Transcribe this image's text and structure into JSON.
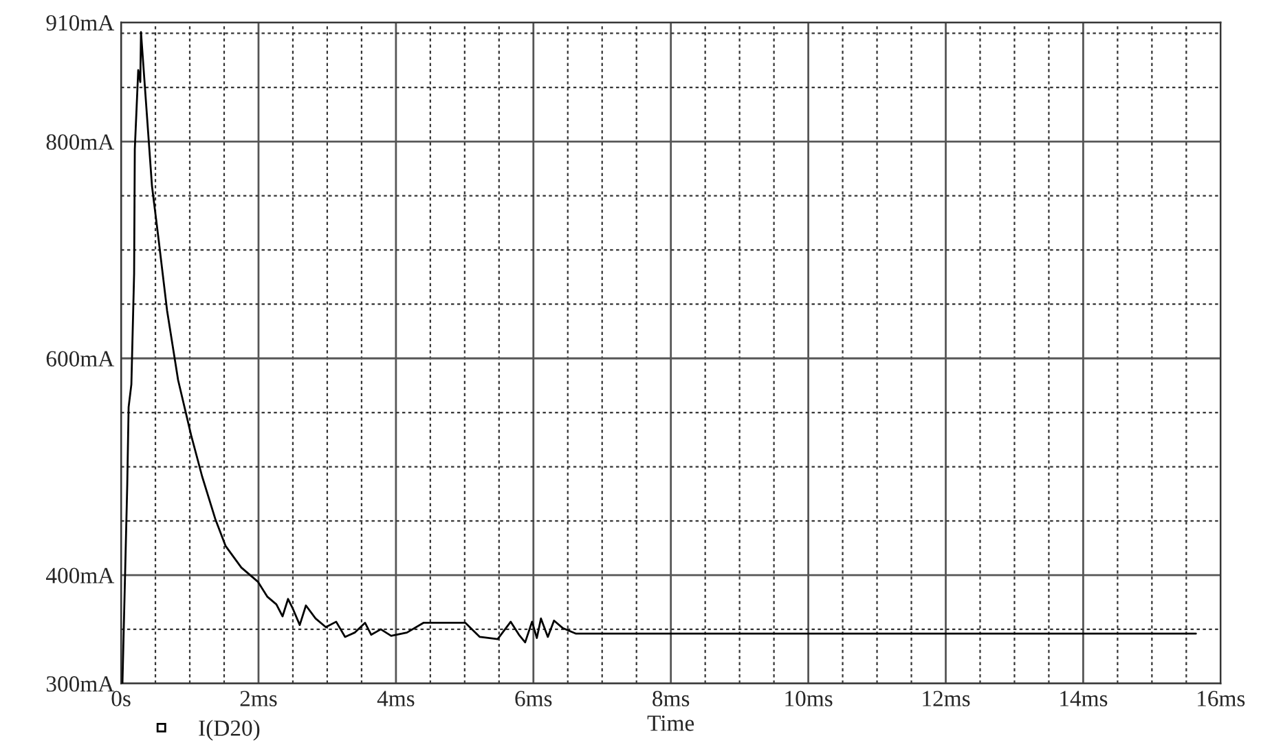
{
  "chart_data": {
    "type": "line",
    "xlabel": "Time",
    "x": [
      0.02,
      0.09,
      0.11,
      0.15,
      0.19,
      0.2,
      0.25,
      0.28,
      0.29,
      0.45,
      0.54,
      0.67,
      0.83,
      1.02,
      1.18,
      1.37,
      1.52,
      1.75,
      1.99,
      2.13,
      2.26,
      2.35,
      2.43,
      2.5,
      2.6,
      2.69,
      2.83,
      2.98,
      3.13,
      3.26,
      3.4,
      3.55,
      3.64,
      3.78,
      3.93,
      4.16,
      4.4,
      5.01,
      5.22,
      5.48,
      5.67,
      5.79,
      5.88,
      5.98,
      6.05,
      6.11,
      6.21,
      6.3,
      6.43,
      6.62,
      15.64
    ],
    "series": [
      {
        "name": "I(D20)",
        "color": "#000000",
        "values": [
          300,
          483,
          555,
          576,
          678,
          793,
          866,
          855,
          901,
          759,
          713,
          644,
          580,
          529,
          491,
          452,
          427,
          407,
          394,
          380,
          373,
          362,
          378,
          369,
          354,
          372,
          360,
          352,
          357,
          343,
          347,
          356,
          345,
          350,
          344,
          347,
          356,
          356,
          343,
          341,
          357,
          345,
          338,
          357,
          342,
          360,
          343,
          358,
          351,
          346,
          346
        ]
      }
    ],
    "xlim": [
      0,
      16
    ],
    "xticks": [
      {
        "value": 0,
        "label": "0s"
      },
      {
        "value": 0.5,
        "label": null
      },
      {
        "value": 1,
        "label": null
      },
      {
        "value": 1.5,
        "label": null
      },
      {
        "value": 2,
        "label": "2ms"
      },
      {
        "value": 2.5,
        "label": null
      },
      {
        "value": 3,
        "label": null
      },
      {
        "value": 3.5,
        "label": null
      },
      {
        "value": 4,
        "label": "4ms"
      },
      {
        "value": 4.5,
        "label": null
      },
      {
        "value": 5,
        "label": null
      },
      {
        "value": 5.5,
        "label": null
      },
      {
        "value": 6,
        "label": "6ms"
      },
      {
        "value": 6.5,
        "label": null
      },
      {
        "value": 7,
        "label": null
      },
      {
        "value": 7.5,
        "label": null
      },
      {
        "value": 8,
        "label": "8ms"
      },
      {
        "value": 8.5,
        "label": null
      },
      {
        "value": 9,
        "label": null
      },
      {
        "value": 9.5,
        "label": null
      },
      {
        "value": 10,
        "label": "10ms"
      },
      {
        "value": 10.5,
        "label": null
      },
      {
        "value": 11,
        "label": null
      },
      {
        "value": 11.5,
        "label": null
      },
      {
        "value": 12,
        "label": "12ms"
      },
      {
        "value": 12.5,
        "label": null
      },
      {
        "value": 13,
        "label": null
      },
      {
        "value": 13.5,
        "label": null
      },
      {
        "value": 14,
        "label": "14ms"
      },
      {
        "value": 14.5,
        "label": null
      },
      {
        "value": 15,
        "label": null
      },
      {
        "value": 15.5,
        "label": null
      },
      {
        "value": 16,
        "label": "16ms"
      }
    ],
    "ylim": [
      300,
      910
    ],
    "yticks": [
      {
        "value": 300,
        "label": "300mA"
      },
      {
        "value": 350,
        "label": null
      },
      {
        "value": 400,
        "label": "400mA"
      },
      {
        "value": 450,
        "label": null
      },
      {
        "value": 500,
        "label": null
      },
      {
        "value": 550,
        "label": null
      },
      {
        "value": 600,
        "label": "600mA"
      },
      {
        "value": 650,
        "label": null
      },
      {
        "value": 700,
        "label": null
      },
      {
        "value": 750,
        "label": null
      },
      {
        "value": 800,
        "label": "800mA"
      },
      {
        "value": 850,
        "label": null
      },
      {
        "value": 900,
        "label": null
      },
      {
        "value": 910,
        "label": "910mA"
      }
    ],
    "grid": true,
    "legend": "bottom left",
    "marker": "none",
    "line_style": "solid"
  }
}
